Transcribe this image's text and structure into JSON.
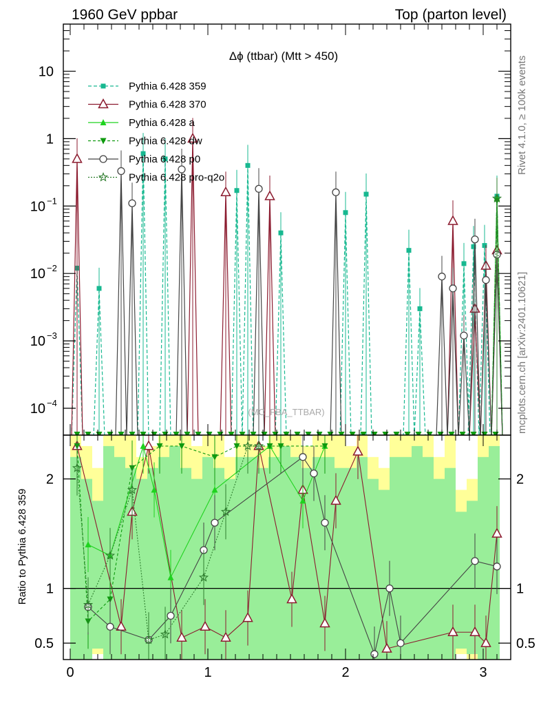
{
  "header": {
    "left": "1960 GeV ppbar",
    "right": "Top (parton level)"
  },
  "side_labels": {
    "rivet": "Rivet 4.1.0, ≥ 100k events",
    "mcplots": "mcplots.cern.ch [arXiv:2401.10621]"
  },
  "watermark": "(MC_FBA_TTBAR)",
  "colors": {
    "p359": "#17b890",
    "p370": "#8b1a2e",
    "pa": "#1fd31f",
    "pdw": "#0f9a0f",
    "pp0": "#444444",
    "pq2o": "#2e7d2e",
    "band_yellow": "#ffff99",
    "band_green": "#99ee99"
  },
  "chart_data": [
    {
      "id": "main",
      "type": "line",
      "title": "Δϕ (ttbar) (Mtt > 450)",
      "xlabel": "",
      "ylabel": "",
      "xlim": [
        -0.05,
        3.2
      ],
      "ylim": [
        4e-05,
        50
      ],
      "yscale": "log",
      "legend_position": "top-left",
      "yticks": [
        {
          "v": 10,
          "label": "10",
          "exp": ""
        },
        {
          "v": 1,
          "label": "1",
          "exp": ""
        },
        {
          "v": 0.1,
          "label": "10",
          "exp": "−1"
        },
        {
          "v": 0.01,
          "label": "10",
          "exp": "−2"
        },
        {
          "v": 0.001,
          "label": "10",
          "exp": "−3"
        },
        {
          "v": 0.0001,
          "label": "10",
          "exp": "−4"
        }
      ],
      "series": [
        {
          "name": "Pythia 6.428 359",
          "key": "p359",
          "marker": "square",
          "dash": "5,3",
          "x": [
            0.05,
            0.21,
            0.53,
            0.69,
            1.21,
            1.29,
            1.53,
            2.0,
            2.15,
            2.46,
            2.54,
            2.86,
            2.93,
            3.01,
            3.1
          ],
          "y": [
            0.012,
            0.006,
            0.6,
            0.5,
            0.17,
            0.4,
            0.04,
            0.08,
            0.15,
            0.022,
            0.003,
            0.014,
            0.025,
            0.026,
            0.14
          ]
        },
        {
          "name": "Pythia 6.428 370",
          "key": "p370",
          "marker": "tri-open",
          "x": [
            0.05,
            0.89,
            1.13,
            1.45,
            2.78,
            2.94,
            3.02,
            3.1
          ],
          "y": [
            0.5,
            1.0,
            0.16,
            0.14,
            0.06,
            0.003,
            0.013,
            0.022
          ]
        },
        {
          "name": "Pythia 6.428 a",
          "key": "pa",
          "marker": "tri-up",
          "x": [
            3.1
          ],
          "y": [
            0.13
          ]
        },
        {
          "name": "Pythia 6.428 dw",
          "key": "pdw",
          "marker": "tri-down",
          "dash": "4,3",
          "x": [
            3.1
          ],
          "y": [
            0.12
          ]
        },
        {
          "name": "Pythia 6.428 p0",
          "key": "pp0",
          "marker": "circle-open",
          "x": [
            0.37,
            0.45,
            0.81,
            1.37,
            1.93,
            2.7,
            2.78,
            2.86,
            2.94,
            3.02,
            3.1
          ],
          "y": [
            0.33,
            0.11,
            0.35,
            0.18,
            0.16,
            0.009,
            0.006,
            0.0012,
            0.032,
            0.008,
            0.019
          ]
        },
        {
          "name": "Pythia 6.428 pro-q2o",
          "key": "pq2o",
          "marker": "star",
          "dash": "2,2",
          "x": [
            3.1
          ],
          "y": [
            0.13
          ]
        }
      ]
    },
    {
      "id": "ratio",
      "type": "line",
      "ylabel": "Ratio to Pythia 6.428 359",
      "xlim": [
        -0.05,
        3.2
      ],
      "ylim": [
        0.35,
        2.4
      ],
      "yticks": [
        {
          "v": 0.5,
          "label": "0.5"
        },
        {
          "v": 1,
          "label": "1"
        },
        {
          "v": 2,
          "label": "2"
        }
      ],
      "xticks": [
        {
          "v": 0,
          "label": "0"
        },
        {
          "v": 1,
          "label": "1"
        },
        {
          "v": 2,
          "label": "2"
        },
        {
          "v": 3,
          "label": "3"
        }
      ],
      "bands": {
        "edges": [
          0.0,
          0.08,
          0.16,
          0.24,
          0.32,
          0.4,
          0.48,
          0.56,
          0.64,
          0.72,
          0.8,
          0.88,
          0.96,
          1.04,
          1.12,
          1.2,
          1.28,
          1.36,
          1.44,
          1.52,
          1.6,
          1.68,
          1.76,
          1.84,
          1.92,
          2.0,
          2.08,
          2.16,
          2.24,
          2.32,
          2.4,
          2.48,
          2.56,
          2.64,
          2.72,
          2.8,
          2.88,
          2.96,
          3.04,
          3.12
        ],
        "yellow_lo": [
          0.35,
          0.35,
          0.4,
          0.35,
          0.35,
          0.35,
          0.35,
          0.35,
          0.35,
          0.35,
          0.35,
          0.35,
          0.35,
          0.35,
          0.35,
          0.35,
          0.35,
          0.35,
          0.35,
          0.35,
          0.35,
          0.35,
          0.35,
          0.35,
          0.35,
          0.35,
          0.35,
          0.35,
          0.35,
          0.35,
          0.35,
          0.35,
          0.35,
          0.35,
          0.35,
          0.4,
          0.35,
          0.35,
          0.35
        ],
        "yellow_hi": [
          2.4,
          2.3,
          2.1,
          2.4,
          2.4,
          2.4,
          2.2,
          2.3,
          2.4,
          2.4,
          2.4,
          2.3,
          2.4,
          2.4,
          2.2,
          2.4,
          2.4,
          2.3,
          2.4,
          2.4,
          2.4,
          2.3,
          2.4,
          2.4,
          2.4,
          2.3,
          2.4,
          2.2,
          2.1,
          2.4,
          2.4,
          2.4,
          2.4,
          2.2,
          2.4,
          1.9,
          2.0,
          2.4,
          2.4
        ],
        "green_lo": [
          0.35,
          0.35,
          0.45,
          0.35,
          0.35,
          0.35,
          0.35,
          0.35,
          0.35,
          0.35,
          0.35,
          0.35,
          0.35,
          0.35,
          0.35,
          0.35,
          0.35,
          0.35,
          0.35,
          0.35,
          0.35,
          0.35,
          0.35,
          0.35,
          0.35,
          0.35,
          0.35,
          0.35,
          0.35,
          0.35,
          0.35,
          0.35,
          0.35,
          0.35,
          0.35,
          0.45,
          0.4,
          0.35,
          0.35
        ],
        "green_hi": [
          2.2,
          2.0,
          1.8,
          2.3,
          2.2,
          2.1,
          2.0,
          2.1,
          2.2,
          2.3,
          2.1,
          2.0,
          2.2,
          2.1,
          2.0,
          2.2,
          2.2,
          2.1,
          2.2,
          2.3,
          2.2,
          2.1,
          2.2,
          2.2,
          2.1,
          2.1,
          2.2,
          2.0,
          1.9,
          2.2,
          2.2,
          2.3,
          2.2,
          2.0,
          2.1,
          1.7,
          1.8,
          2.2,
          2.3
        ]
      },
      "series": [
        {
          "name": "Pythia 6.428 370",
          "key": "p370",
          "marker": "tri-open",
          "x": [
            0.05,
            0.37,
            0.45,
            0.57,
            0.81,
            0.98,
            1.13,
            1.29,
            1.37,
            1.61,
            1.69,
            1.85,
            1.93,
            2.09,
            2.3,
            2.78,
            2.94,
            3.02,
            3.1
          ],
          "y": [
            2.3,
            0.65,
            1.7,
            2.3,
            0.55,
            0.65,
            0.55,
            0.73,
            2.3,
            0.9,
            1.9,
            0.68,
            1.8,
            2.25,
            0.45,
            0.6,
            0.6,
            0.5,
            1.5
          ]
        },
        {
          "name": "Pythia 6.428 a",
          "key": "pa",
          "marker": "tri-up",
          "x": [
            0.13,
            0.29,
            0.53,
            0.61,
            0.73,
            1.05,
            1.45,
            1.69,
            1.85
          ],
          "y": [
            1.4,
            1.3,
            2.3,
            1.9,
            1.1,
            1.9,
            2.3,
            1.8,
            2.3
          ]
        },
        {
          "name": "Pythia 6.428 dw",
          "key": "pdw",
          "marker": "tri-down",
          "x": [
            0.05,
            0.13,
            0.29,
            0.45,
            0.65,
            0.81,
            1.05,
            1.21,
            1.45,
            1.53,
            1.85
          ],
          "y": [
            2.3,
            0.7,
            0.9,
            2.1,
            2.3,
            2.3,
            2.2,
            2.3,
            2.3,
            2.3,
            2.3
          ]
        },
        {
          "name": "Pythia 6.428 p0",
          "key": "pp0",
          "marker": "circle-open",
          "x": [
            0.13,
            0.29,
            0.57,
            0.73,
            0.97,
            1.05,
            1.69,
            1.77,
            1.85,
            2.21,
            2.32,
            2.4,
            2.94,
            3.1
          ],
          "y": [
            0.83,
            0.65,
            0.53,
            0.75,
            1.35,
            1.6,
            2.2,
            2.05,
            1.6,
            0.4,
            1.0,
            0.5,
            1.25,
            1.2
          ]
        },
        {
          "name": "Pythia 6.428 pro-q2o",
          "key": "pq2o",
          "marker": "star",
          "x": [
            0.05,
            0.13,
            0.29,
            0.45,
            0.57,
            0.69,
            0.97,
            1.13,
            1.29,
            1.37
          ],
          "y": [
            2.1,
            0.85,
            1.3,
            1.9,
            0.53,
            0.58,
            1.1,
            1.7,
            2.3,
            2.3
          ]
        }
      ]
    }
  ]
}
